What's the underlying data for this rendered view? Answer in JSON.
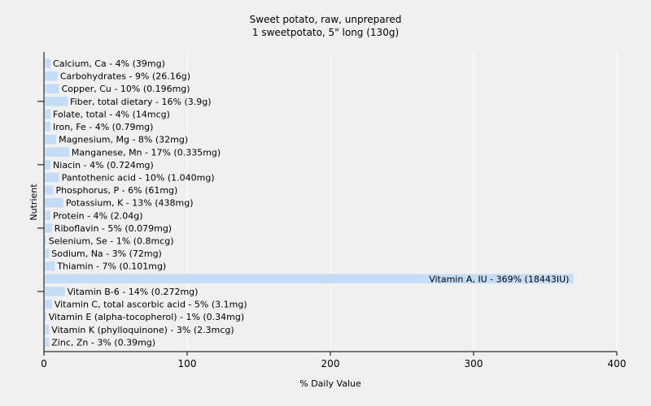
{
  "chart_data": {
    "type": "bar",
    "orientation": "horizontal",
    "title": "Sweet potato, raw, unprepared",
    "subtitle": "1 sweetpotato, 5\" long (130g)",
    "xlabel": "% Daily Value",
    "ylabel": "Nutrient",
    "xlim": [
      0,
      400
    ],
    "xticks": [
      0,
      100,
      200,
      300,
      400
    ],
    "grid": true,
    "bar_color": "#c5dcf7",
    "categories": [
      "Calcium, Ca - 4% (39mg)",
      "Carbohydrates - 9% (26.16g)",
      "Copper, Cu - 10% (0.196mg)",
      "Fiber, total dietary - 16% (3.9g)",
      "Folate, total - 4% (14mcg)",
      "Iron, Fe - 4% (0.79mg)",
      "Magnesium, Mg - 8% (32mg)",
      "Manganese, Mn - 17% (0.335mg)",
      "Niacin - 4% (0.724mg)",
      "Pantothenic acid - 10% (1.040mg)",
      "Phosphorus, P - 6% (61mg)",
      "Potassium, K - 13% (438mg)",
      "Protein - 4% (2.04g)",
      "Riboflavin - 5% (0.079mg)",
      "Selenium, Se - 1% (0.8mcg)",
      "Sodium, Na - 3% (72mg)",
      "Thiamin - 7% (0.101mg)",
      "Vitamin A, IU - 369% (18443IU)",
      "Vitamin B-6 - 14% (0.272mg)",
      "Vitamin C, total ascorbic acid - 5% (3.1mg)",
      "Vitamin E (alpha-tocopherol) - 1% (0.34mg)",
      "Vitamin K (phylloquinone) - 3% (2.3mcg)",
      "Zinc, Zn - 3% (0.39mg)"
    ],
    "values": [
      4,
      9,
      10,
      16,
      4,
      4,
      8,
      17,
      4,
      10,
      6,
      13,
      4,
      5,
      1,
      3,
      7,
      369,
      14,
      5,
      1,
      3,
      3
    ]
  }
}
